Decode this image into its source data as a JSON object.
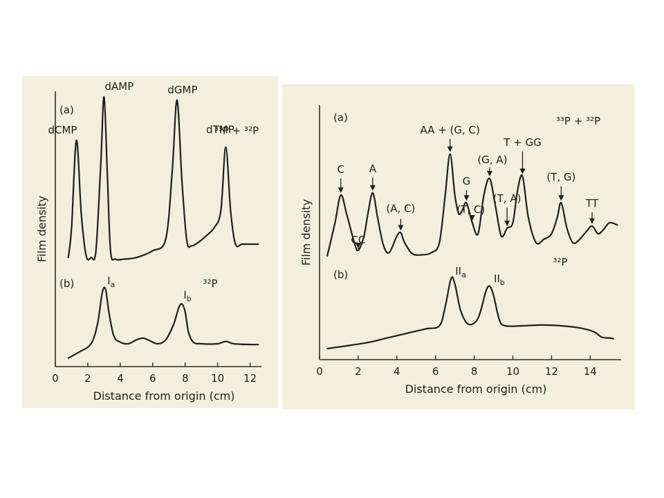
{
  "chart_data": [
    {
      "type": "line",
      "title": "",
      "xlabel": "Distance from origin (cm)",
      "ylabel": "Film density",
      "xlim": [
        0,
        12.7
      ],
      "xticks": [
        0,
        2,
        4,
        6,
        8,
        10,
        12
      ],
      "tick_labels": [
        "0",
        "2",
        "4",
        "6",
        "8",
        "10",
        "12"
      ],
      "series": [
        {
          "name": "(a)",
          "isotope": "33P + 32P",
          "panel_label": "(a)",
          "isotope_label": "³³P + ³²P",
          "x": [
            0.8,
            1.0,
            1.3,
            1.6,
            1.9,
            2.2,
            2.5,
            2.8,
            3.0,
            3.2,
            3.4,
            3.7,
            4.2,
            5.0,
            6.0,
            6.8,
            7.2,
            7.5,
            7.8,
            8.1,
            8.4,
            8.8,
            9.3,
            9.8,
            10.2,
            10.5,
            10.8,
            11.1,
            11.5,
            12.0,
            12.5
          ],
          "y": [
            0.04,
            0.22,
            0.74,
            0.3,
            0.05,
            0.04,
            0.08,
            0.6,
            1.0,
            0.55,
            0.08,
            0.03,
            0.03,
            0.04,
            0.08,
            0.15,
            0.55,
            0.98,
            0.5,
            0.14,
            0.11,
            0.13,
            0.17,
            0.22,
            0.32,
            0.7,
            0.32,
            0.12,
            0.12,
            0.12,
            0.12
          ],
          "peaks": [
            {
              "label": "dCMP",
              "x": 1.3
            },
            {
              "label": "dAMP",
              "x": 3.0
            },
            {
              "label": "dGMP",
              "x": 7.5
            },
            {
              "label": "dTMP",
              "x": 10.5
            }
          ]
        },
        {
          "name": "(b)",
          "isotope": "32P",
          "panel_label": "(b)",
          "isotope_label": "³²P",
          "x": [
            0.8,
            1.5,
            2.2,
            2.6,
            2.9,
            3.1,
            3.3,
            3.6,
            4.0,
            4.5,
            5.0,
            5.4,
            5.8,
            6.3,
            6.8,
            7.3,
            7.6,
            7.8,
            8.0,
            8.2,
            8.5,
            9.0,
            10.0,
            10.5,
            11.0,
            12.0,
            12.5
          ],
          "y": [
            0.02,
            0.1,
            0.2,
            0.45,
            0.85,
            0.88,
            0.6,
            0.3,
            0.22,
            0.2,
            0.25,
            0.27,
            0.24,
            0.2,
            0.25,
            0.45,
            0.65,
            0.7,
            0.6,
            0.35,
            0.22,
            0.2,
            0.2,
            0.23,
            0.2,
            0.19,
            0.19
          ],
          "peaks": [
            {
              "label": "I",
              "sub": "a",
              "x": 3.1
            },
            {
              "label": "I",
              "sub": "b",
              "x": 7.8
            }
          ]
        }
      ]
    },
    {
      "type": "line",
      "title": "",
      "xlabel": "Distance from origin (cm)",
      "ylabel": "Film density",
      "xlim": [
        0,
        15.6
      ],
      "xticks": [
        0,
        2,
        4,
        6,
        8,
        10,
        12,
        14
      ],
      "tick_labels": [
        "0",
        "2",
        "4",
        "6",
        "8",
        "10",
        "12",
        "14"
      ],
      "series": [
        {
          "name": "(a)",
          "isotope": "33P + 32P",
          "panel_label": "(a)",
          "isotope_label": "³³P + ³²P",
          "x": [
            0.4,
            0.8,
            1.1,
            1.4,
            1.8,
            2.0,
            2.3,
            2.5,
            2.75,
            3.0,
            3.3,
            3.6,
            4.0,
            4.2,
            4.4,
            4.8,
            5.3,
            5.8,
            6.2,
            6.5,
            6.75,
            7.0,
            7.2,
            7.4,
            7.6,
            7.9,
            8.2,
            8.5,
            8.8,
            9.1,
            9.4,
            9.7,
            10.0,
            10.25,
            10.5,
            10.8,
            11.2,
            11.6,
            12.0,
            12.3,
            12.5,
            12.8,
            13.1,
            13.4,
            13.8,
            14.1,
            14.4,
            14.7,
            15.0,
            15.4
          ],
          "y": [
            0.0,
            0.3,
            0.55,
            0.38,
            0.12,
            0.05,
            0.18,
            0.38,
            0.57,
            0.35,
            0.1,
            0.03,
            0.18,
            0.21,
            0.12,
            0.02,
            0.01,
            0.03,
            0.12,
            0.55,
            0.92,
            0.55,
            0.38,
            0.42,
            0.48,
            0.3,
            0.2,
            0.55,
            0.7,
            0.45,
            0.18,
            0.25,
            0.3,
            0.6,
            0.72,
            0.35,
            0.12,
            0.15,
            0.2,
            0.35,
            0.48,
            0.25,
            0.12,
            0.14,
            0.22,
            0.27,
            0.2,
            0.24,
            0.3,
            0.28
          ],
          "annotations": [
            {
              "label": "C",
              "x": 1.1,
              "arrow": true
            },
            {
              "label": "CC",
              "x": 2.0,
              "arrow": true
            },
            {
              "label": "A",
              "x": 2.75,
              "arrow": true
            },
            {
              "label": "(A, C)",
              "x": 4.2,
              "arrow": true
            },
            {
              "label": "AA + (G, C)",
              "x": 6.75,
              "arrow": true
            },
            {
              "label": "G",
              "x": 7.6,
              "arrow": true
            },
            {
              "label": "(G, A)",
              "x": 8.8,
              "arrow": true
            },
            {
              "label": "(T, C)",
              "x": 7.9,
              "arrow": true
            },
            {
              "label": "(T, A)",
              "x": 9.7,
              "arrow": true
            },
            {
              "label": "T + GG",
              "x": 10.5,
              "arrow": true
            },
            {
              "label": "(T, G)",
              "x": 12.5,
              "arrow": true
            },
            {
              "label": "TT",
              "x": 14.1,
              "arrow": true
            }
          ]
        },
        {
          "name": "(b)",
          "isotope": "32P",
          "panel_label": "(b)",
          "isotope_label": "³²P",
          "x": [
            0.4,
            1.5,
            2.5,
            3.5,
            4.5,
            5.5,
            6.2,
            6.5,
            6.8,
            7.0,
            7.3,
            7.7,
            8.2,
            8.6,
            8.8,
            9.0,
            9.3,
            9.6,
            10.5,
            11.5,
            12.5,
            13.5,
            14.2,
            14.6,
            15.0,
            15.2
          ],
          "y": [
            0.0,
            0.04,
            0.08,
            0.14,
            0.2,
            0.26,
            0.3,
            0.55,
            0.92,
            0.85,
            0.5,
            0.32,
            0.4,
            0.75,
            0.82,
            0.7,
            0.38,
            0.3,
            0.3,
            0.31,
            0.3,
            0.27,
            0.22,
            0.15,
            0.14,
            0.13
          ],
          "peaks": [
            {
              "label": "II",
              "sub": "a",
              "x": 6.8
            },
            {
              "label": "II",
              "sub": "b",
              "x": 8.8
            }
          ]
        }
      ]
    }
  ]
}
